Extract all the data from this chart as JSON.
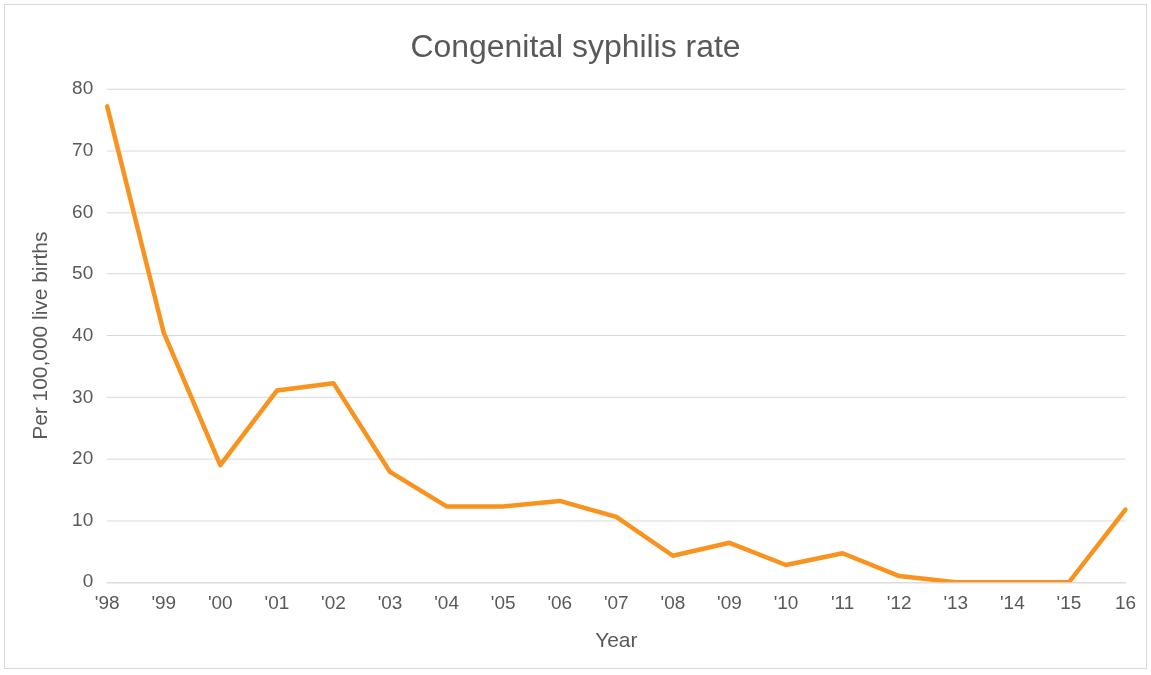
{
  "chart_data": {
    "type": "line",
    "title": "Congenital syphilis rate",
    "xlabel": "Year",
    "ylabel": "Per 100,000 live births",
    "categories": [
      "'98",
      "'99",
      "'00",
      "'01",
      "'02",
      "'03",
      "'04",
      "'05",
      "'06",
      "'07",
      "'08",
      "'09",
      "'10",
      "'11",
      "'12",
      "'13",
      "'14",
      "'15",
      "16"
    ],
    "series": [
      {
        "color": "#f7931e",
        "values": [
          77.2,
          40.5,
          19.0,
          31.1,
          32.3,
          17.9,
          12.3,
          12.3,
          13.2,
          10.6,
          4.3,
          6.4,
          2.8,
          4.7,
          1.0,
          0,
          0,
          0,
          11.8
        ]
      }
    ],
    "ylim": [
      0,
      80
    ],
    "yticks": [
      0,
      10,
      20,
      30,
      40,
      50,
      60,
      70,
      80
    ],
    "grid": "y",
    "legend": false,
    "marker": "none",
    "line_style": "solid"
  }
}
